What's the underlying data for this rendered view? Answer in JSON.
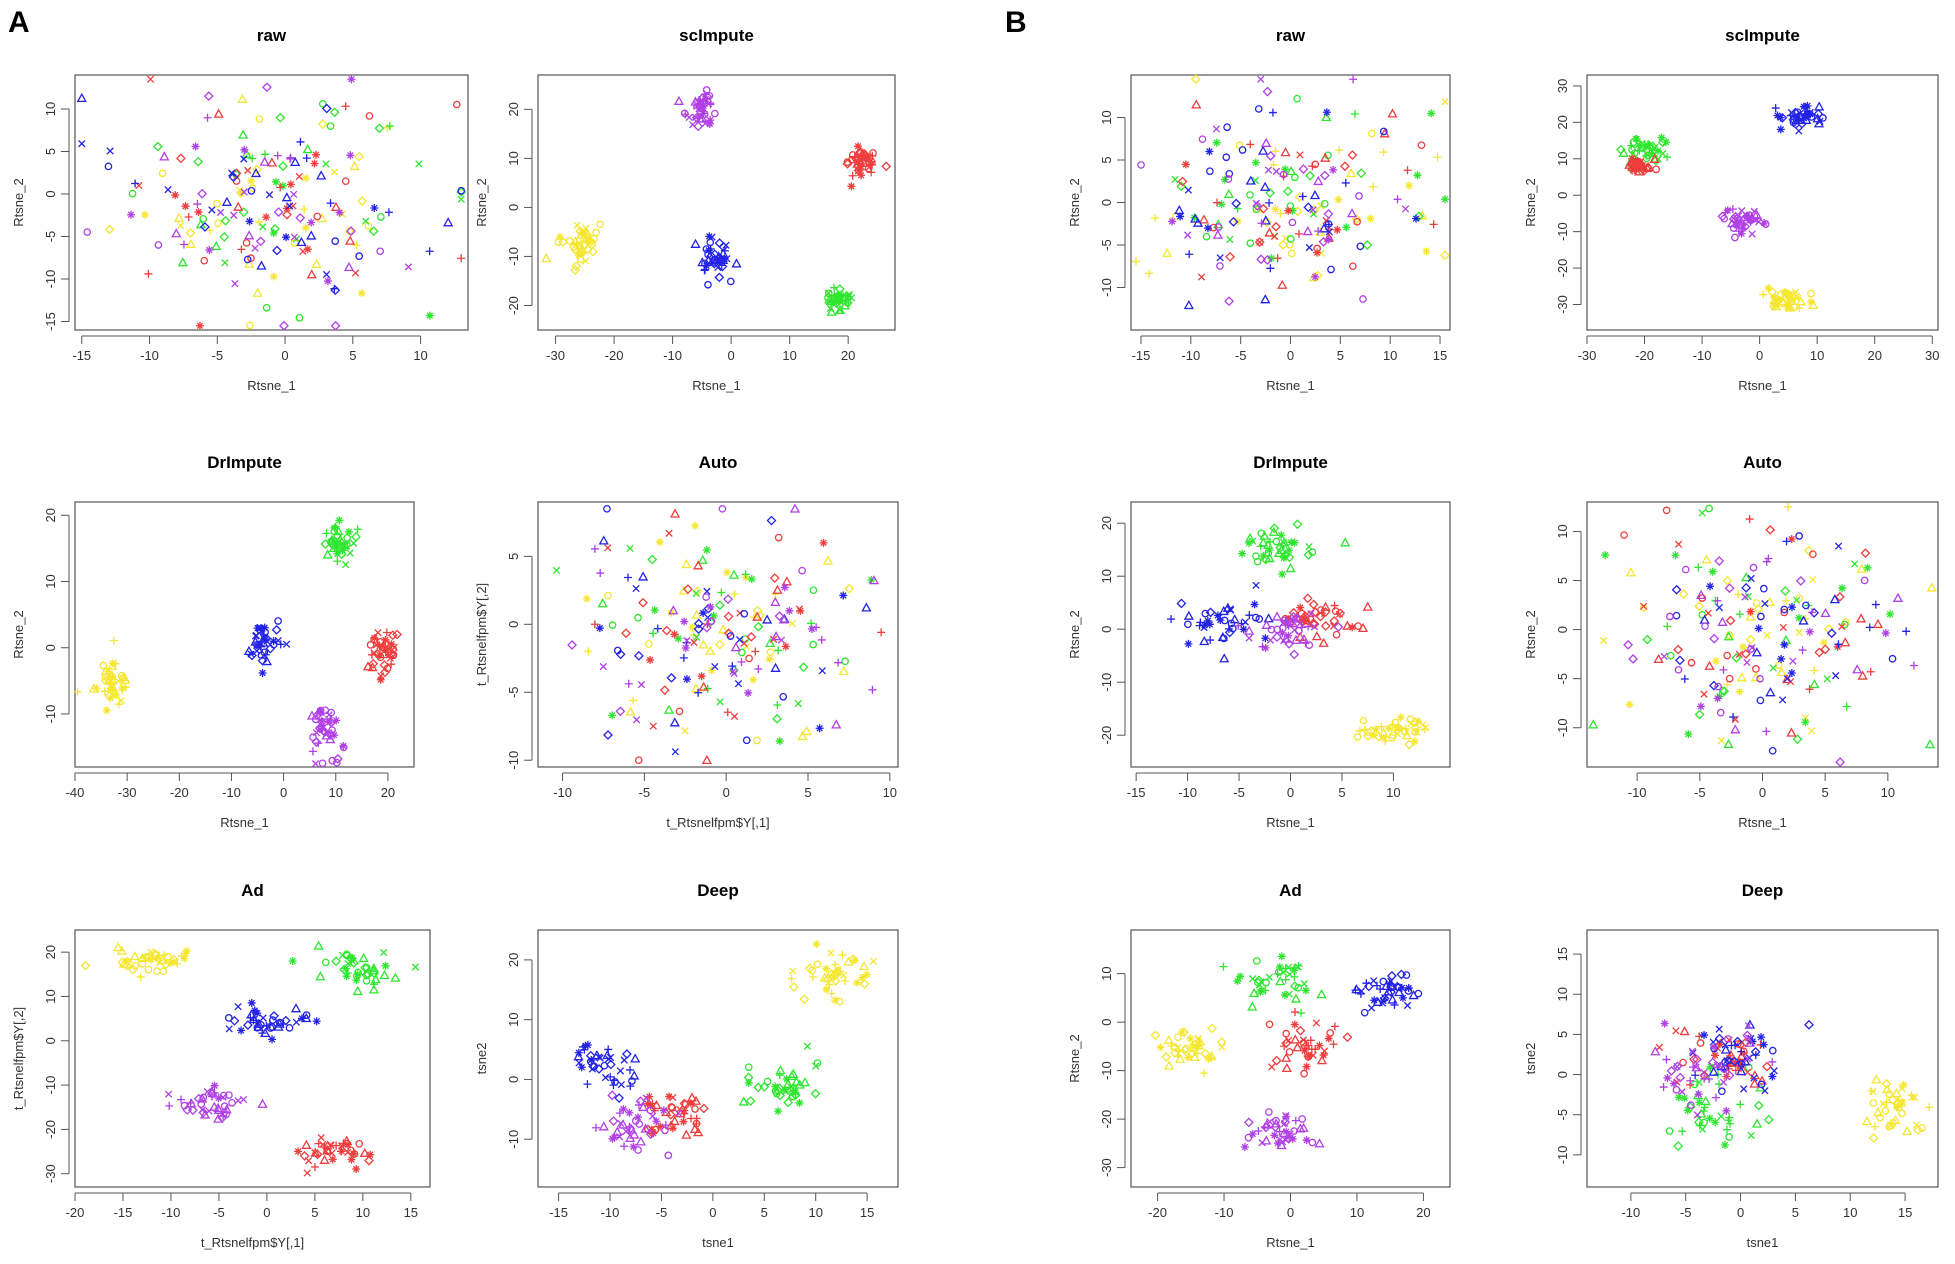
{
  "panels": [
    {
      "letter": "A",
      "x": 8,
      "y": 32
    },
    {
      "letter": "B",
      "x": 1005,
      "y": 32
    }
  ],
  "colors": {
    "yellow": "#f5e631",
    "green": "#2ee62e",
    "red": "#f03c3c",
    "blue": "#2323e6",
    "purple": "#b040e6"
  },
  "chart_data": [
    {
      "id": "A-raw",
      "type": "scatter",
      "title": "raw",
      "xlabel": "Rtsne_1",
      "ylabel": "Rtsne_2",
      "xlim": [
        -15.5,
        13.5
      ],
      "ylim": [
        -16,
        14
      ],
      "xticks": [
        -15,
        -10,
        -5,
        0,
        5,
        10
      ],
      "yticks": [
        -15,
        -10,
        -5,
        0,
        5,
        10
      ],
      "clusters": "diffuse"
    },
    {
      "id": "A-scimpute",
      "type": "scatter",
      "title": "scImpute",
      "xlabel": "Rtsne_1",
      "ylabel": "Rtsne_2",
      "xlim": [
        -33,
        28
      ],
      "ylim": [
        -25,
        27
      ],
      "xticks": [
        -30,
        -20,
        -10,
        0,
        10,
        20
      ],
      "yticks": [
        -20,
        -10,
        0,
        10,
        20
      ],
      "clusters": "separated"
    },
    {
      "id": "A-drimpute",
      "type": "scatter",
      "title": "DrImpute",
      "xlabel": "Rtsne_1",
      "ylabel": "Rtsne_2",
      "xlim": [
        -40,
        25
      ],
      "ylim": [
        -18,
        22
      ],
      "xticks": [
        -40,
        -30,
        -20,
        -10,
        0,
        10,
        20
      ],
      "yticks": [
        -10,
        0,
        10,
        20
      ],
      "clusters": "separated"
    },
    {
      "id": "A-auto",
      "type": "scatter",
      "title": "Auto",
      "xlabel": "t_Rtsnelfpm$Y[,1]",
      "ylabel": "t_Rtsnelfpm$Y[,2]",
      "xlim": [
        -11.5,
        10.5
      ],
      "ylim": [
        -10.5,
        9
      ],
      "xticks": [
        -10,
        -5,
        0,
        5,
        10
      ],
      "yticks": [
        -10,
        -5,
        0,
        5
      ],
      "clusters": "diffuse"
    },
    {
      "id": "A-ad",
      "type": "scatter",
      "title": "Ad",
      "xlabel": "t_Rtsnelfpm$Y[,1]",
      "ylabel": "t_Rtsnelfpm$Y[,2]",
      "xlim": [
        -20,
        17
      ],
      "ylim": [
        -33,
        25
      ],
      "xticks": [
        -20,
        -15,
        -10,
        -5,
        0,
        5,
        10,
        15
      ],
      "yticks": [
        -30,
        -20,
        -10,
        0,
        10,
        20
      ],
      "clusters": "separated"
    },
    {
      "id": "A-deep",
      "type": "scatter",
      "title": "Deep",
      "xlabel": "tsne1",
      "ylabel": "tsne2",
      "xlim": [
        -17,
        18
      ],
      "ylim": [
        -18,
        25
      ],
      "xticks": [
        -15,
        -10,
        -5,
        0,
        5,
        10,
        15
      ],
      "yticks": [
        -10,
        0,
        10,
        20
      ],
      "clusters": "partial"
    },
    {
      "id": "B-raw",
      "type": "scatter",
      "title": "raw",
      "xlabel": "Rtsne_1",
      "ylabel": "Rtsne_2",
      "xlim": [
        -16,
        16
      ],
      "ylim": [
        -15,
        15
      ],
      "xticks": [
        -15,
        -10,
        -5,
        0,
        5,
        10,
        15
      ],
      "yticks": [
        -10,
        -5,
        0,
        5,
        10
      ],
      "clusters": "diffuse"
    },
    {
      "id": "B-scimpute",
      "type": "scatter",
      "title": "scImpute",
      "xlabel": "Rtsne_1",
      "ylabel": "Rtsne_2",
      "xlim": [
        -30,
        31
      ],
      "ylim": [
        -37,
        33
      ],
      "xticks": [
        -30,
        -20,
        -10,
        0,
        10,
        20,
        30
      ],
      "yticks": [
        -30,
        -20,
        -10,
        0,
        10,
        20,
        30
      ],
      "clusters": "separated"
    },
    {
      "id": "B-drimpute",
      "type": "scatter",
      "title": "DrImpute",
      "xlabel": "Rtsne_1",
      "ylabel": "Rtsne_2",
      "xlim": [
        -15.5,
        15.5
      ],
      "ylim": [
        -26,
        24
      ],
      "xticks": [
        -15,
        -10,
        -5,
        0,
        5,
        10
      ],
      "yticks": [
        -20,
        -10,
        0,
        10,
        20
      ],
      "clusters": "partial"
    },
    {
      "id": "B-auto",
      "type": "scatter",
      "title": "Auto",
      "xlabel": "Rtsne_1",
      "ylabel": "Rtsne_2",
      "xlim": [
        -14,
        14
      ],
      "ylim": [
        -14,
        13
      ],
      "xticks": [
        -10,
        -5,
        0,
        5,
        10
      ],
      "yticks": [
        -10,
        -5,
        0,
        5,
        10
      ],
      "clusters": "diffuse"
    },
    {
      "id": "B-ad",
      "type": "scatter",
      "title": "Ad",
      "xlabel": "Rtsne_1",
      "ylabel": "Rtsne_2",
      "xlim": [
        -24,
        24
      ],
      "ylim": [
        -34,
        19
      ],
      "xticks": [
        -20,
        -10,
        0,
        10,
        20
      ],
      "yticks": [
        -30,
        -20,
        -10,
        0,
        10
      ],
      "clusters": "separated"
    },
    {
      "id": "B-deep",
      "type": "scatter",
      "title": "Deep",
      "xlabel": "tsne1",
      "ylabel": "tsne2",
      "xlim": [
        -14,
        18
      ],
      "ylim": [
        -14,
        18
      ],
      "xticks": [
        -10,
        -5,
        0,
        5,
        10,
        15
      ],
      "yticks": [
        -10,
        -5,
        0,
        5,
        10,
        15
      ],
      "clusters": "partial"
    }
  ]
}
